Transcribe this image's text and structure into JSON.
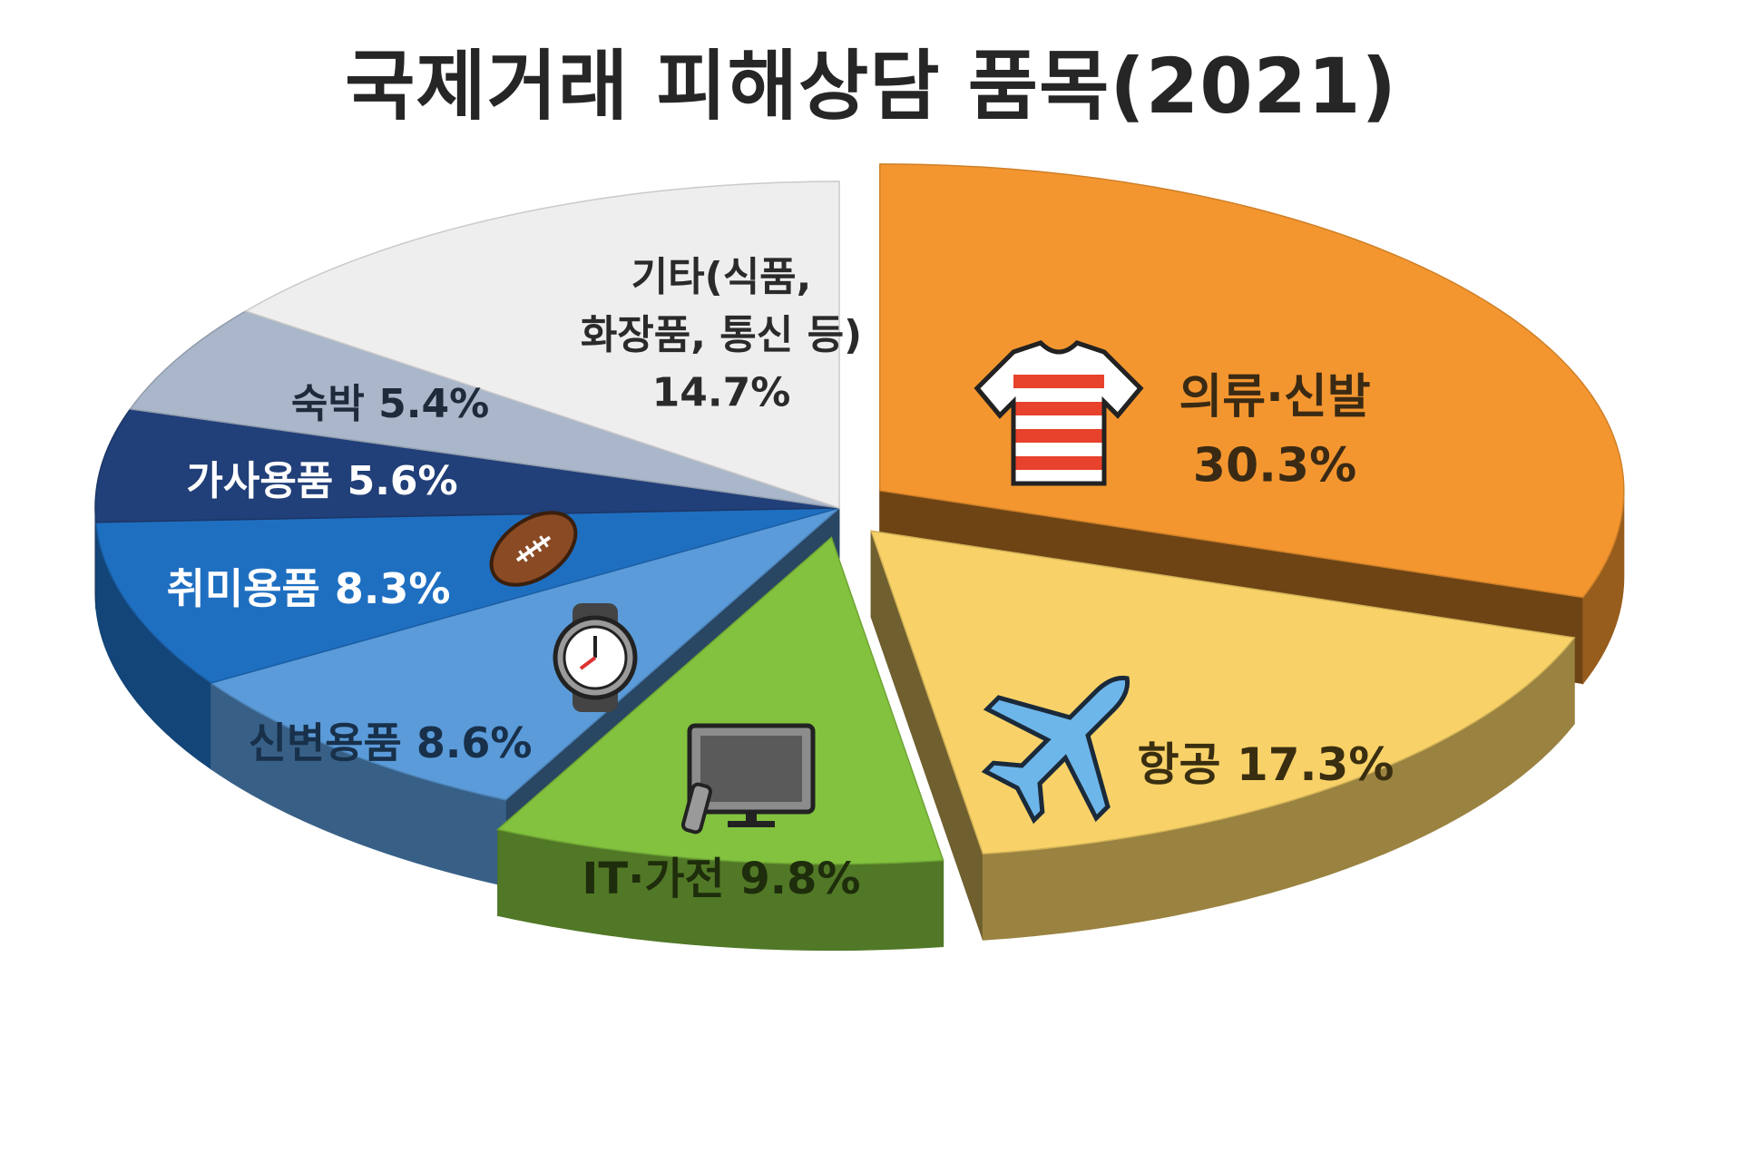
{
  "chart_data": {
    "type": "pie",
    "title": "국제거래 피해상담 품목(2021)",
    "slices": [
      {
        "label": "의류·신발",
        "value": 30.3,
        "value_text": "30.3%",
        "color": "#F4962F",
        "icon": "t-shirt-icon",
        "exploded": true
      },
      {
        "label": "항공",
        "value": 17.3,
        "value_text": "17.3%",
        "color": "#F8D268",
        "icon": "airplane-icon",
        "exploded": true
      },
      {
        "label": "IT·가전",
        "value": 9.8,
        "value_text": "9.8%",
        "color": "#82C23E",
        "icon": "television-icon",
        "exploded": true
      },
      {
        "label": "신변용품",
        "value": 8.6,
        "value_text": "8.6%",
        "color": "#5B9BD9",
        "icon": "wristwatch-icon"
      },
      {
        "label": "취미용품",
        "value": 8.3,
        "value_text": "8.3%",
        "color": "#1F6FC1",
        "icon": "football-icon"
      },
      {
        "label": "가사용품",
        "value": 5.6,
        "value_text": "5.6%",
        "color": "#213F78"
      },
      {
        "label": "숙박",
        "value": 5.4,
        "value_text": "5.4%",
        "color": "#AAB7CB"
      },
      {
        "label": "기타(식품, 화장품, 통신 등)",
        "label_lines": [
          "기타(식품,",
          "화장품, 통신 등)"
        ],
        "value": 14.7,
        "value_text": "14.7%",
        "color": "#EEEEEE"
      }
    ]
  }
}
